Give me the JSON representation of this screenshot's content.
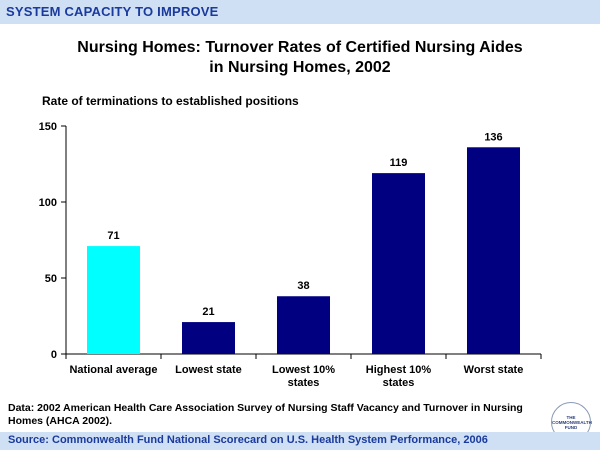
{
  "header": {
    "band_text": "SYSTEM CAPACITY TO IMPROVE"
  },
  "chart_data": {
    "type": "bar",
    "title_lines": [
      "Nursing Homes: Turnover Rates of Certified Nursing Aides",
      "in Nursing Homes, 2002"
    ],
    "ylabel": "Rate of terminations to established positions",
    "xlabel": "",
    "categories": [
      [
        "National average"
      ],
      [
        "Lowest state"
      ],
      [
        "Lowest 10%",
        "states"
      ],
      [
        "Highest 10%",
        "states"
      ],
      [
        "Worst state"
      ]
    ],
    "values": [
      71,
      21,
      38,
      119,
      136
    ],
    "data_labels": [
      "71",
      "21",
      "38",
      "119",
      "136"
    ],
    "bar_colors": [
      "#00ffff",
      "#000080",
      "#000080",
      "#000080",
      "#000080"
    ],
    "ylim": [
      0,
      150
    ],
    "yticks": [
      0,
      50,
      100,
      150
    ],
    "ytick_labels": [
      "0",
      "50",
      "100",
      "150"
    ],
    "grid": false,
    "legend": "none"
  },
  "footer": {
    "note": "Data: 2002 American Health Care Association Survey of Nursing Staff Vacancy and Turnover in Nursing Homes (AHCA 2002).",
    "source": "Source: Commonwealth Fund National Scorecard on U.S. Health System Performance, 2006",
    "logo_lines": [
      "THE",
      "COMMONWEALTH",
      "FUND"
    ]
  }
}
